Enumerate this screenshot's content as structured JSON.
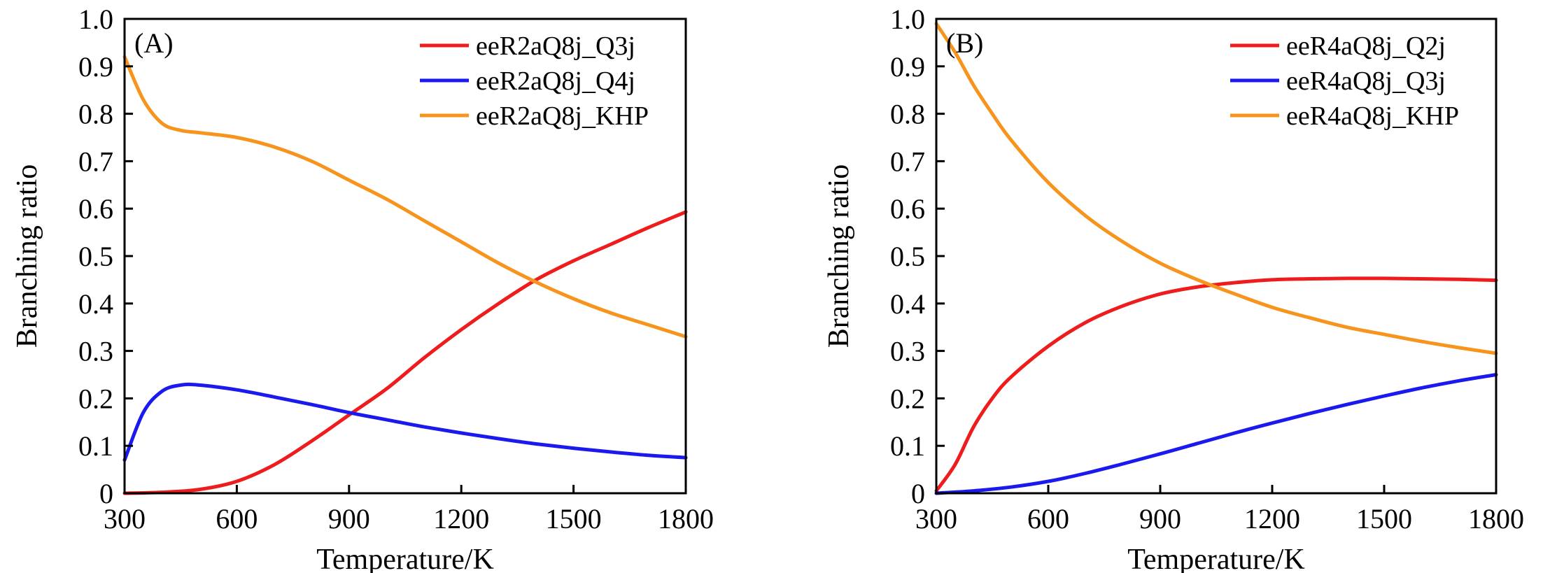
{
  "chart_data": [
    {
      "type": "line",
      "panel_label": "(A)",
      "xlabel": "Temperature/K",
      "ylabel": "Branching ratio",
      "xlim": [
        300,
        1800
      ],
      "ylim": [
        0,
        1.0
      ],
      "xticks": [
        300,
        600,
        900,
        1200,
        1500,
        1800
      ],
      "xtick_labels": [
        "300",
        "600",
        "900",
        "1200",
        "1500",
        "1800"
      ],
      "yticks": [
        0,
        0.1,
        0.2,
        0.3,
        0.4,
        0.5,
        0.6,
        0.7,
        0.8,
        0.9,
        1.0
      ],
      "ytick_labels": [
        "0",
        "0.1",
        "0.2",
        "0.3",
        "0.4",
        "0.5",
        "0.6",
        "0.7",
        "0.8",
        "0.9",
        "1.0"
      ],
      "legend_position": "top-right",
      "series": [
        {
          "name": "eeR2aQ8j_Q3j",
          "color": "#ee1c1c",
          "x": [
            300,
            400,
            500,
            600,
            700,
            800,
            900,
            1000,
            1100,
            1200,
            1300,
            1400,
            1500,
            1600,
            1700,
            1800
          ],
          "y": [
            0.0,
            0.002,
            0.008,
            0.025,
            0.06,
            0.11,
            0.165,
            0.22,
            0.285,
            0.345,
            0.4,
            0.45,
            0.49,
            0.525,
            0.56,
            0.593
          ]
        },
        {
          "name": "eeR2aQ8j_Q4j",
          "color": "#1a1aee",
          "x": [
            300,
            350,
            400,
            450,
            500,
            600,
            700,
            800,
            900,
            1000,
            1100,
            1200,
            1300,
            1400,
            1500,
            1600,
            1700,
            1800
          ],
          "y": [
            0.07,
            0.17,
            0.215,
            0.228,
            0.228,
            0.218,
            0.203,
            0.187,
            0.17,
            0.155,
            0.14,
            0.127,
            0.115,
            0.104,
            0.095,
            0.087,
            0.08,
            0.075
          ]
        },
        {
          "name": "eeR2aQ8j_KHP",
          "color": "#f7941d",
          "x": [
            300,
            350,
            400,
            450,
            500,
            600,
            700,
            800,
            900,
            1000,
            1100,
            1200,
            1300,
            1400,
            1500,
            1600,
            1700,
            1800
          ],
          "y": [
            0.92,
            0.83,
            0.78,
            0.765,
            0.76,
            0.75,
            0.73,
            0.7,
            0.66,
            0.62,
            0.575,
            0.53,
            0.485,
            0.445,
            0.41,
            0.38,
            0.355,
            0.33
          ]
        }
      ]
    },
    {
      "type": "line",
      "panel_label": "(B)",
      "xlabel": "Temperature/K",
      "ylabel": "Branching ratio",
      "xlim": [
        300,
        1800
      ],
      "ylim": [
        0,
        1.0
      ],
      "xticks": [
        300,
        600,
        900,
        1200,
        1500,
        1800
      ],
      "xtick_labels": [
        "300",
        "600",
        "900",
        "1200",
        "1500",
        "1800"
      ],
      "yticks": [
        0,
        0.1,
        0.2,
        0.3,
        0.4,
        0.5,
        0.6,
        0.7,
        0.8,
        0.9,
        1.0
      ],
      "ytick_labels": [
        "0",
        "0.1",
        "0.2",
        "0.3",
        "0.4",
        "0.5",
        "0.6",
        "0.7",
        "0.8",
        "0.9",
        "1.0"
      ],
      "legend_position": "top-right",
      "series": [
        {
          "name": "eeR4aQ8j_Q2j",
          "color": "#ee1c1c",
          "x": [
            300,
            350,
            400,
            450,
            500,
            600,
            700,
            800,
            900,
            1000,
            1100,
            1200,
            1300,
            1400,
            1500,
            1600,
            1700,
            1800
          ],
          "y": [
            0.005,
            0.06,
            0.14,
            0.2,
            0.245,
            0.31,
            0.36,
            0.395,
            0.42,
            0.435,
            0.444,
            0.45,
            0.452,
            0.453,
            0.453,
            0.452,
            0.451,
            0.449
          ]
        },
        {
          "name": "eeR4aQ8j_Q3j",
          "color": "#1a1aee",
          "x": [
            300,
            400,
            500,
            600,
            700,
            800,
            900,
            1000,
            1100,
            1200,
            1300,
            1400,
            1500,
            1600,
            1700,
            1800
          ],
          "y": [
            0.0,
            0.005,
            0.013,
            0.025,
            0.042,
            0.062,
            0.083,
            0.105,
            0.127,
            0.148,
            0.168,
            0.187,
            0.205,
            0.222,
            0.237,
            0.25
          ]
        },
        {
          "name": "eeR4aQ8j_KHP",
          "color": "#f7941d",
          "x": [
            300,
            350,
            400,
            450,
            500,
            600,
            700,
            800,
            900,
            1000,
            1100,
            1200,
            1300,
            1400,
            1500,
            1600,
            1700,
            1800
          ],
          "y": [
            0.99,
            0.93,
            0.86,
            0.8,
            0.745,
            0.655,
            0.585,
            0.53,
            0.485,
            0.45,
            0.42,
            0.392,
            0.37,
            0.35,
            0.335,
            0.32,
            0.307,
            0.295
          ]
        }
      ]
    }
  ]
}
